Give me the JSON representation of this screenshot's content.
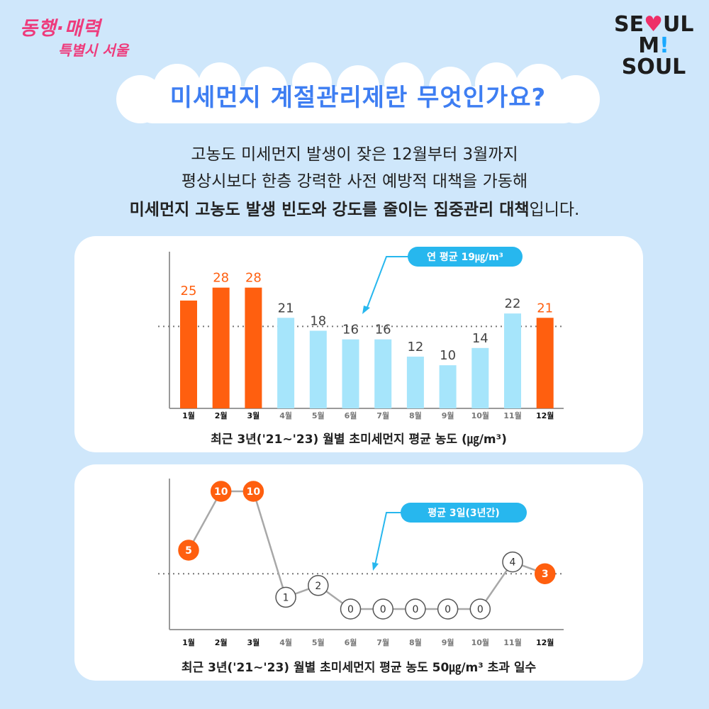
{
  "logos": {
    "left_line1": "동행·매력",
    "left_line2": "특별시 서울",
    "right_line1_a": "SE",
    "right_line1_b": "♥",
    "right_line1_c": "UL",
    "right_line2_a": "M",
    "right_line2_b": "!",
    "right_line2_c": " SOUL"
  },
  "title": "미세먼지 계절관리제란 무엇인가요?",
  "intro": {
    "line1": "고농도 미세먼지 발생이 잦은 12월부터 3월까지",
    "line2": "평상시보다 한층 강력한 사전 예방적 대책을 가동해",
    "line3_bold": "미세먼지 고농도 발생 빈도와 강도를 줄이는 집중관리 대책",
    "line3_rest": "입니다."
  },
  "colors": {
    "orange": "#ff5f0f",
    "lightblue": "#a6e5fb",
    "cyan": "#27b7ee",
    "title_blue": "#3e7ef2"
  },
  "chart_data": [
    {
      "type": "bar",
      "title": "최근 3년('21~'23) 월별 초미세먼지 평균 농도 (㎍/m³)",
      "categories": [
        "1월",
        "2월",
        "3월",
        "4월",
        "5월",
        "6월",
        "7월",
        "8월",
        "9월",
        "10월",
        "11월",
        "12월"
      ],
      "values": [
        25,
        28,
        28,
        21,
        18,
        16,
        16,
        12,
        10,
        14,
        22,
        21
      ],
      "highlight": [
        true,
        true,
        true,
        false,
        false,
        false,
        false,
        false,
        false,
        false,
        false,
        true
      ],
      "average": 19,
      "average_label": "연 평균 19㎍/m³",
      "ylim": [
        0,
        36
      ],
      "grid": false
    },
    {
      "type": "line",
      "title": "최근 3년('21~'23) 월별 초미세먼지 평균 농도 50㎍/m³ 초과 일수",
      "categories": [
        "1월",
        "2월",
        "3월",
        "4월",
        "5월",
        "6월",
        "7월",
        "8월",
        "9월",
        "10월",
        "11월",
        "12월"
      ],
      "values": [
        5,
        10,
        10,
        1,
        2,
        0,
        0,
        0,
        0,
        0,
        4,
        3
      ],
      "highlight": [
        true,
        true,
        true,
        false,
        false,
        false,
        false,
        false,
        false,
        false,
        false,
        true
      ],
      "average": 3,
      "average_label": "평균 3일(3년간)",
      "ylim": [
        0,
        10
      ],
      "grid": false
    }
  ]
}
